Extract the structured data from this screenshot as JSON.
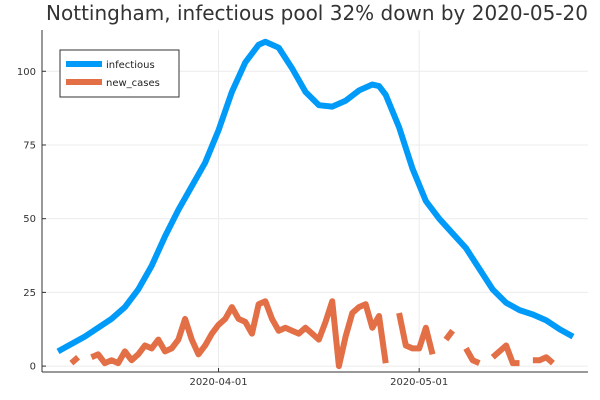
{
  "chart_data": {
    "type": "line",
    "title": "Nottingham, infectious pool 32% down by 2020-05-20",
    "xlabel": "",
    "ylabel": "",
    "x_axis": {
      "type": "date",
      "range": [
        "2020-03-08",
        "2020-05-24"
      ],
      "ticks": [
        "2020-04-01",
        "2020-05-01"
      ]
    },
    "y_axis": {
      "range": [
        -2,
        114
      ],
      "ticks": [
        0,
        25,
        50,
        75,
        100
      ]
    },
    "grid": true,
    "legend": {
      "position": "top-left"
    },
    "series": [
      {
        "name": "infectious",
        "color": "#009af9",
        "points": [
          [
            "2020-03-08",
            5
          ],
          [
            "2020-03-10",
            7.5
          ],
          [
            "2020-03-12",
            10
          ],
          [
            "2020-03-14",
            13
          ],
          [
            "2020-03-16",
            16
          ],
          [
            "2020-03-18",
            20
          ],
          [
            "2020-03-20",
            26
          ],
          [
            "2020-03-22",
            34
          ],
          [
            "2020-03-24",
            44
          ],
          [
            "2020-03-26",
            53
          ],
          [
            "2020-03-28",
            61
          ],
          [
            "2020-03-30",
            69
          ],
          [
            "2020-04-01",
            80
          ],
          [
            "2020-04-03",
            93
          ],
          [
            "2020-04-05",
            103
          ],
          [
            "2020-04-07",
            109
          ],
          [
            "2020-04-08",
            110
          ],
          [
            "2020-04-10",
            108
          ],
          [
            "2020-04-12",
            101
          ],
          [
            "2020-04-14",
            93
          ],
          [
            "2020-04-16",
            88.5
          ],
          [
            "2020-04-18",
            88
          ],
          [
            "2020-04-20",
            90
          ],
          [
            "2020-04-22",
            93.5
          ],
          [
            "2020-04-24",
            95.5
          ],
          [
            "2020-04-25",
            95
          ],
          [
            "2020-04-26",
            92
          ],
          [
            "2020-04-28",
            81
          ],
          [
            "2020-04-30",
            67
          ],
          [
            "2020-05-02",
            56
          ],
          [
            "2020-05-04",
            50
          ],
          [
            "2020-05-06",
            45
          ],
          [
            "2020-05-08",
            40
          ],
          [
            "2020-05-10",
            33
          ],
          [
            "2020-05-12",
            26
          ],
          [
            "2020-05-14",
            21.5
          ],
          [
            "2020-05-16",
            19
          ],
          [
            "2020-05-18",
            17.5
          ],
          [
            "2020-05-20",
            15.5
          ],
          [
            "2020-05-22",
            12.5
          ],
          [
            "2020-05-24",
            10
          ]
        ]
      },
      {
        "name": "new_cases",
        "color": "#e26f46",
        "points": [
          [
            "2020-03-10",
            1
          ],
          [
            "2020-03-11",
            3
          ],
          [
            "2020-03-12",
            null
          ],
          [
            "2020-03-13",
            3
          ],
          [
            "2020-03-14",
            4
          ],
          [
            "2020-03-15",
            1
          ],
          [
            "2020-03-16",
            2
          ],
          [
            "2020-03-17",
            1
          ],
          [
            "2020-03-18",
            5
          ],
          [
            "2020-03-19",
            2
          ],
          [
            "2020-03-20",
            4
          ],
          [
            "2020-03-21",
            7
          ],
          [
            "2020-03-22",
            6
          ],
          [
            "2020-03-23",
            9
          ],
          [
            "2020-03-24",
            5
          ],
          [
            "2020-03-25",
            6
          ],
          [
            "2020-03-26",
            9
          ],
          [
            "2020-03-27",
            16
          ],
          [
            "2020-03-28",
            9
          ],
          [
            "2020-03-29",
            4
          ],
          [
            "2020-03-30",
            7
          ],
          [
            "2020-03-31",
            11
          ],
          [
            "2020-04-01",
            14
          ],
          [
            "2020-04-02",
            16
          ],
          [
            "2020-04-03",
            20
          ],
          [
            "2020-04-04",
            16
          ],
          [
            "2020-04-05",
            15
          ],
          [
            "2020-04-06",
            11
          ],
          [
            "2020-04-07",
            21
          ],
          [
            "2020-04-08",
            22
          ],
          [
            "2020-04-09",
            16
          ],
          [
            "2020-04-10",
            12
          ],
          [
            "2020-04-11",
            13
          ],
          [
            "2020-04-12",
            12
          ],
          [
            "2020-04-13",
            11
          ],
          [
            "2020-04-14",
            13
          ],
          [
            "2020-04-15",
            11
          ],
          [
            "2020-04-16",
            9
          ],
          [
            "2020-04-17",
            15
          ],
          [
            "2020-04-18",
            22
          ],
          [
            "2020-04-19",
            0
          ],
          [
            "2020-04-20",
            10
          ],
          [
            "2020-04-21",
            18
          ],
          [
            "2020-04-22",
            20
          ],
          [
            "2020-04-23",
            21
          ],
          [
            "2020-04-24",
            13
          ],
          [
            "2020-04-25",
            17
          ],
          [
            "2020-04-26",
            1
          ],
          [
            "2020-04-27",
            null
          ],
          [
            "2020-04-28",
            18
          ],
          [
            "2020-04-29",
            7
          ],
          [
            "2020-04-30",
            6
          ],
          [
            "2020-05-01",
            6
          ],
          [
            "2020-05-02",
            13
          ],
          [
            "2020-05-03",
            4
          ],
          [
            "2020-05-04",
            null
          ],
          [
            "2020-05-05",
            9
          ],
          [
            "2020-05-06",
            12
          ],
          [
            "2020-05-07",
            null
          ],
          [
            "2020-05-08",
            6
          ],
          [
            "2020-05-09",
            2
          ],
          [
            "2020-05-10",
            1
          ],
          [
            "2020-05-11",
            null
          ],
          [
            "2020-05-12",
            3
          ],
          [
            "2020-05-13",
            5
          ],
          [
            "2020-05-14",
            7
          ],
          [
            "2020-05-15",
            1
          ],
          [
            "2020-05-16",
            1
          ],
          [
            "2020-05-17",
            null
          ],
          [
            "2020-05-18",
            2
          ],
          [
            "2020-05-19",
            2
          ],
          [
            "2020-05-20",
            3
          ],
          [
            "2020-05-21",
            1
          ]
        ]
      }
    ]
  }
}
